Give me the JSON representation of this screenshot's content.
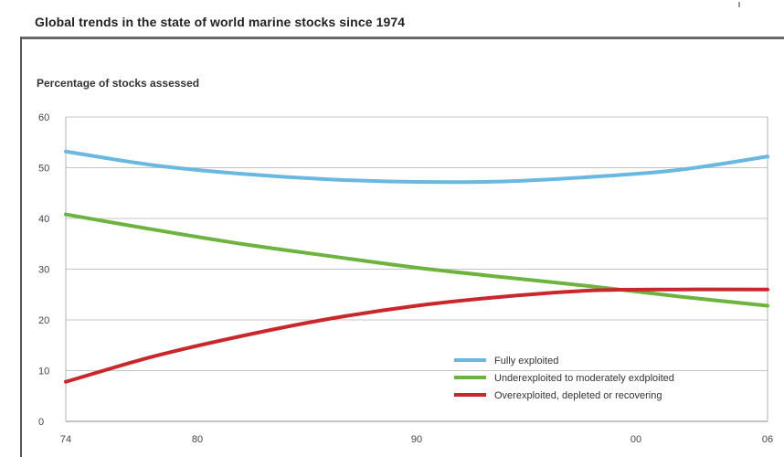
{
  "chart_data": {
    "type": "line",
    "title": "Global trends in the state of world marine stocks since 1974",
    "ylabel": "Percentage of stocks assessed",
    "xlabel": "",
    "x_ticks": [
      "74",
      "80",
      "90",
      "00",
      "06"
    ],
    "x_tick_values": [
      1974,
      1980,
      1990,
      2000,
      2006
    ],
    "xlim": [
      1974,
      2006
    ],
    "y_ticks": [
      "0",
      "10",
      "20",
      "30",
      "40",
      "50",
      "60"
    ],
    "ylim": [
      0,
      60
    ],
    "grid": "horizontal",
    "legend_position": "bottom-right",
    "series": [
      {
        "name": "Fully exploited",
        "color": "#6ab8e0",
        "x": [
          1974,
          1978,
          1982,
          1986,
          1990,
          1994,
          1998,
          2002,
          2006
        ],
        "values": [
          53.2,
          50.5,
          48.8,
          47.7,
          47.2,
          47.3,
          48.2,
          49.6,
          52.2
        ]
      },
      {
        "name": "Underexploited to moderately exdploited",
        "color": "#6db33f",
        "x": [
          1974,
          1978,
          1982,
          1986,
          1990,
          1994,
          1998,
          2002,
          2006
        ],
        "values": [
          40.8,
          37.8,
          35.0,
          32.6,
          30.3,
          28.4,
          26.6,
          24.6,
          22.8
        ]
      },
      {
        "name": "Overexploited, depleted or recovering",
        "color": "#c8282c",
        "x": [
          1974,
          1978,
          1982,
          1986,
          1990,
          1994,
          1998,
          2002,
          2006
        ],
        "values": [
          7.8,
          12.8,
          16.8,
          20.2,
          22.8,
          24.6,
          25.8,
          26.0,
          26.0
        ]
      }
    ]
  }
}
